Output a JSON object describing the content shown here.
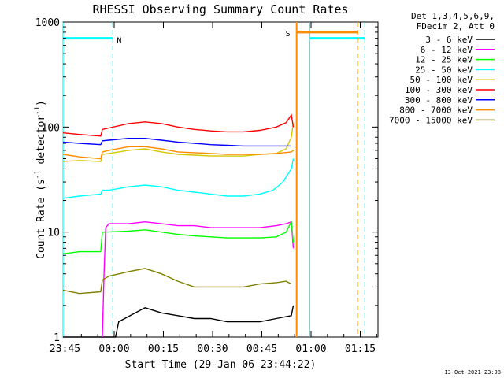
{
  "chart_data": {
    "type": "line",
    "title": "RHESSI Observing Summary Count Rates",
    "xlabel": "Start Time (29-Jan-06 23:44:22)",
    "ylabel_main": "Count Rate (s",
    "ylabel_sup1": "-1",
    "ylabel_mid": " detector",
    "ylabel_sup2": "-1",
    "ylabel_end": ")",
    "y_scale": "log",
    "ylim": [
      1,
      1000
    ],
    "x_unit": "minutes since 23:44:22",
    "xlim": [
      0,
      96
    ],
    "x_ticks": [
      {
        "label": "23:45",
        "value": 0.6
      },
      {
        "label": "00:00",
        "value": 15.6
      },
      {
        "label": "00:15",
        "value": 30.6
      },
      {
        "label": "00:30",
        "value": 45.6
      },
      {
        "label": "00:45",
        "value": 60.6
      },
      {
        "label": "01:00",
        "value": 75.6
      },
      {
        "label": "01:15",
        "value": 90.6
      }
    ],
    "y_ticks": [
      {
        "label": "1",
        "value": 1
      },
      {
        "label": "10",
        "value": 10
      },
      {
        "label": "100",
        "value": 100
      },
      {
        "label": "1000",
        "value": 1000
      }
    ],
    "legend_header": [
      "Det 1,3,4,5,6,9,",
      "FDecim 2, Att 0"
    ],
    "legend_position": "right",
    "series": [
      {
        "name": "3 - 6 keV",
        "color": "#000000",
        "x": [
          0,
          16,
          17,
          25,
          30,
          35,
          40,
          45,
          50,
          55,
          60,
          65,
          69.6,
          70.2
        ],
        "y": [
          1,
          1,
          1.4,
          1.9,
          1.7,
          1.6,
          1.5,
          1.5,
          1.4,
          1.4,
          1.4,
          1.5,
          1.6,
          2.0
        ]
      },
      {
        "name": "6 - 12 keV",
        "color": "#ff00ff",
        "x": [
          12,
          12.5,
          13,
          14,
          20,
          25,
          30,
          35,
          40,
          45,
          50,
          55,
          60,
          65,
          68,
          69.6,
          70.2
        ],
        "y": [
          1,
          4,
          11,
          12,
          12,
          12.5,
          12,
          11.5,
          11.5,
          11,
          11,
          11,
          11,
          11.5,
          12,
          12.5,
          7.0
        ]
      },
      {
        "name": "12 - 25 keV",
        "color": "#00ff00",
        "x": [
          0,
          5,
          11.5,
          12,
          13,
          20,
          25,
          30,
          35,
          40,
          45,
          50,
          55,
          60,
          65,
          68,
          69.6,
          70.2
        ],
        "y": [
          6.2,
          6.5,
          6.5,
          10,
          10,
          10.2,
          10.5,
          10,
          9.5,
          9.2,
          9,
          8.8,
          8.8,
          8.8,
          9,
          10,
          12.5,
          8.0
        ]
      },
      {
        "name": "25 - 50 keV",
        "color": "#00ffff",
        "x": [
          0,
          5,
          11.5,
          12,
          14,
          20,
          25,
          30,
          35,
          40,
          45,
          50,
          55,
          60,
          64,
          67,
          69.6,
          70.2
        ],
        "y": [
          21,
          22,
          23,
          25,
          25,
          27,
          28,
          27,
          25,
          24,
          23,
          22,
          22,
          23,
          25,
          30,
          40,
          50
        ]
      },
      {
        "name": "50 - 100 keV",
        "color": "#d4c800",
        "x": [
          0,
          5,
          11.5,
          12,
          14,
          20,
          25,
          30,
          35,
          40,
          45,
          50,
          55,
          60,
          65,
          68,
          69.6,
          70.2
        ],
        "y": [
          47,
          48,
          47,
          55,
          56,
          60,
          62,
          58,
          55,
          54,
          53,
          53,
          53,
          55,
          56,
          62,
          80,
          110
        ]
      },
      {
        "name": "100 - 300 keV",
        "color": "#ff0000",
        "x": [
          0,
          5,
          11.5,
          12,
          14,
          20,
          25,
          30,
          35,
          40,
          45,
          50,
          55,
          60,
          65,
          68,
          69.6,
          70.2
        ],
        "y": [
          88,
          85,
          82,
          95,
          98,
          108,
          112,
          108,
          100,
          95,
          92,
          90,
          90,
          93,
          100,
          110,
          130,
          100
        ]
      },
      {
        "name": "300 - 800 keV",
        "color": "#0000ff",
        "x": [
          0,
          5,
          11.5,
          12,
          14,
          20,
          25,
          30,
          35,
          40,
          45,
          50,
          55,
          60,
          65,
          68,
          69.6
        ],
        "y": [
          72,
          70,
          68,
          74,
          75,
          78,
          78,
          75,
          72,
          70,
          68,
          67,
          66,
          66,
          66,
          66,
          66
        ]
      },
      {
        "name": "800 - 7000 keV",
        "color": "#ff8c00",
        "x": [
          0,
          5,
          11.5,
          12,
          14,
          20,
          25,
          30,
          35,
          40,
          45,
          50,
          55,
          60,
          65,
          69.6,
          70.2
        ],
        "y": [
          55,
          52,
          50,
          58,
          60,
          65,
          65,
          62,
          58,
          57,
          56,
          55,
          55,
          55,
          56,
          58,
          60
        ]
      },
      {
        "name": "7000 - 15000 keV",
        "color": "#808000",
        "x": [
          0,
          5,
          11.5,
          12,
          14,
          20,
          25,
          30,
          35,
          40,
          45,
          50,
          55,
          60,
          65,
          68,
          69.6
        ],
        "y": [
          2.8,
          2.6,
          2.7,
          3.5,
          3.8,
          4.2,
          4.5,
          4.0,
          3.4,
          3.0,
          3.0,
          3.0,
          3.0,
          3.2,
          3.3,
          3.4,
          3.2
        ]
      }
    ],
    "attenuator_line": {
      "color": "#ff8c00",
      "x": 71.2
    },
    "saa": {
      "label": "S",
      "color": "#ff8c00",
      "start": 71.2,
      "end": 89.8,
      "level": 800
    },
    "night": [
      {
        "label": "N",
        "color": "#00ffff",
        "start": 0,
        "end": 15.2,
        "level": 700,
        "label_at": 15.2
      },
      {
        "label": "",
        "color": "#00ffff",
        "start": 75.2,
        "end": 92,
        "level": 700,
        "label_at": 92
      }
    ]
  },
  "footer": {
    "timestamp": "13-Oct-2021 23:08"
  }
}
